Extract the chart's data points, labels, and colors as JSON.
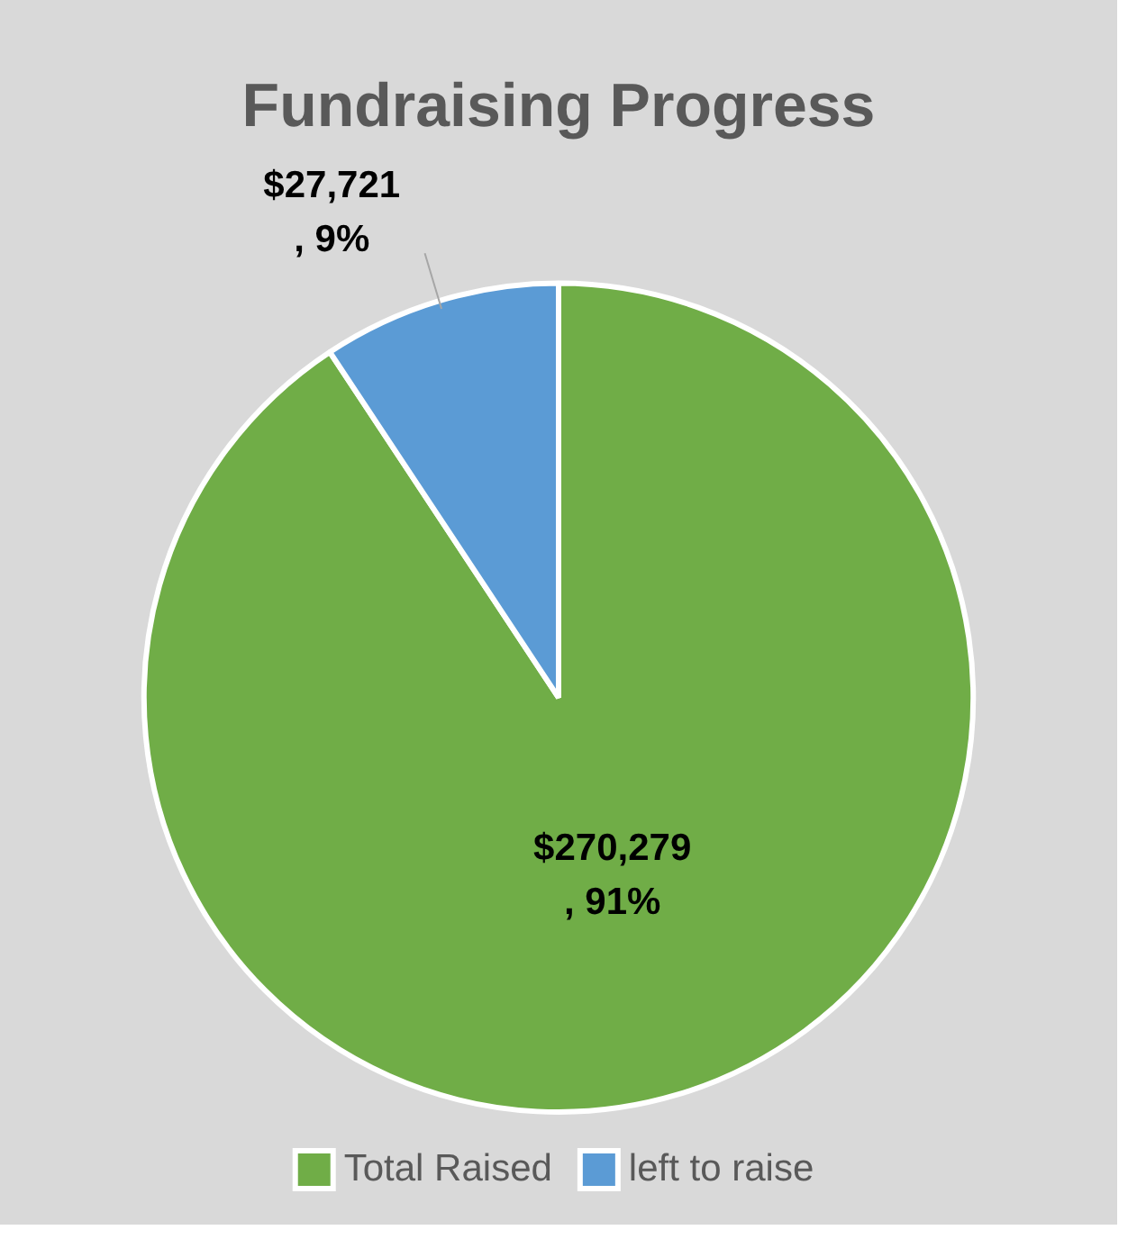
{
  "chart_data": {
    "type": "pie",
    "title": "Fundraising Progress",
    "categories": [
      "Total Raised",
      "left to raise"
    ],
    "values": [
      270279,
      27721
    ],
    "colors": [
      "#70ad47",
      "#5b9bd5"
    ],
    "value_labels": [
      "$270,279\n, 91%",
      "$27,721\n, 9%"
    ],
    "legend": "bottom"
  }
}
